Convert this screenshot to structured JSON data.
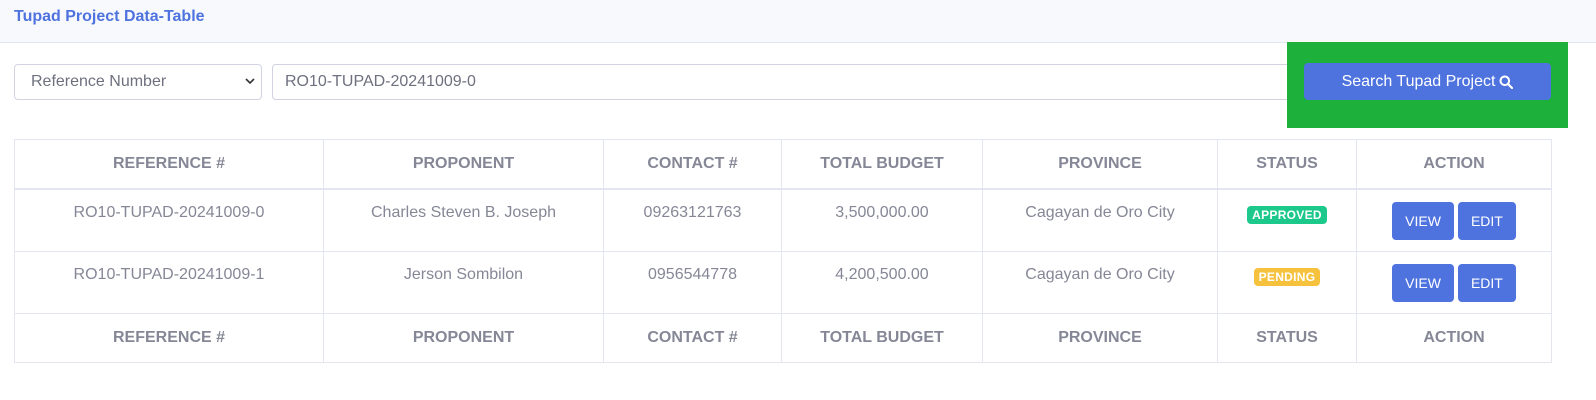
{
  "header": {
    "title": "Tupad Project Data-Table"
  },
  "filter": {
    "selected_field": "Reference Number",
    "search_value": "RO10-TUPAD-20241009-0",
    "search_button_label": "Search Tupad Project"
  },
  "table": {
    "columns": [
      "REFERENCE #",
      "PROPONENT",
      "CONTACT #",
      "TOTAL BUDGET",
      "PROVINCE",
      "STATUS",
      "ACTION"
    ],
    "rows": [
      {
        "reference": "RO10-TUPAD-20241009-0",
        "proponent": "Charles Steven B. Joseph",
        "contact": "09263121763",
        "budget": "3,500,000.00",
        "province": "Cagayan de Oro City",
        "status": "APPROVED",
        "view_label": "VIEW",
        "edit_label": "EDIT"
      },
      {
        "reference": "RO10-TUPAD-20241009-1",
        "proponent": "Jerson Sombilon",
        "contact": "0956544778",
        "budget": "4,200,500.00",
        "province": "Cagayan de Oro City",
        "status": "PENDING",
        "view_label": "VIEW",
        "edit_label": "EDIT"
      }
    ]
  },
  "colors": {
    "primary": "#4e73df",
    "approved": "#1cc88a",
    "pending": "#f6c23e",
    "highlight": "#1db13b"
  },
  "icons": {
    "search": "search-icon",
    "select": "chevron-down-icon"
  }
}
